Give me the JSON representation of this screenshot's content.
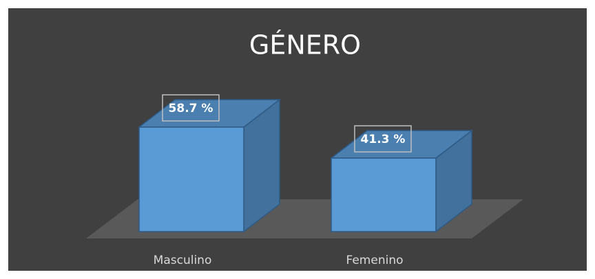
{
  "chart_data": {
    "type": "bar3d",
    "title": "GÉNERO",
    "categories": [
      "Masculino",
      "Femenino"
    ],
    "values": [
      58.7,
      41.3
    ],
    "value_labels": [
      "58.7 %",
      "41.3 %"
    ],
    "color": "#5b9bd5"
  }
}
